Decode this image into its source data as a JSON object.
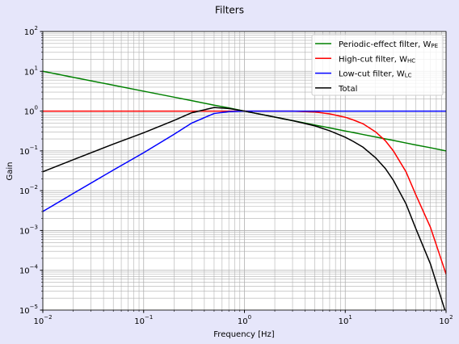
{
  "chart_data": {
    "type": "line",
    "title": "Filters",
    "x_label": "Frequency [Hz]",
    "y_label": "Gain",
    "xscale": "log",
    "yscale": "log",
    "grid": true,
    "legend": "upper right",
    "xlim": [
      0.01,
      100
    ],
    "ylim": [
      1e-05,
      100
    ],
    "xticks": [
      {
        "value": 0.01,
        "label": "10",
        "exponent": "−2"
      },
      {
        "value": 0.1,
        "label": "10",
        "exponent": "−1"
      },
      {
        "value": 1,
        "label": "10",
        "exponent": "0"
      },
      {
        "value": 10,
        "label": "10",
        "exponent": "1"
      },
      {
        "value": 100,
        "label": "10",
        "exponent": "2"
      }
    ],
    "yticks": [
      {
        "value": 1e-05,
        "label": "10",
        "exponent": "−5"
      },
      {
        "value": 0.0001,
        "label": "10",
        "exponent": "−4"
      },
      {
        "value": 0.001,
        "label": "10",
        "exponent": "−3"
      },
      {
        "value": 0.01,
        "label": "10",
        "exponent": "−2"
      },
      {
        "value": 0.1,
        "label": "10",
        "exponent": "−1"
      },
      {
        "value": 1,
        "label": "10",
        "exponent": "0"
      },
      {
        "value": 10,
        "label": "10",
        "exponent": "1"
      },
      {
        "value": 100,
        "label": "10",
        "exponent": "2"
      }
    ],
    "x": [
      0.01,
      0.02,
      0.05,
      0.1,
      0.2,
      0.3,
      0.5,
      0.7,
      1,
      2,
      3,
      5,
      7,
      10,
      12,
      15,
      20,
      25,
      30,
      40,
      50,
      70,
      100
    ],
    "series": [
      {
        "name": "Periodic-effect filter, W",
        "subscript": "PE",
        "color": "#008000",
        "values": [
          10,
          7.07,
          4.47,
          3.16,
          2.24,
          1.83,
          1.41,
          1.2,
          1,
          0.707,
          0.577,
          0.447,
          0.378,
          0.316,
          0.289,
          0.258,
          0.224,
          0.2,
          0.183,
          0.158,
          0.141,
          0.12,
          0.1
        ]
      },
      {
        "name": "High-cut filter, W",
        "subscript": "HC",
        "color": "#ff0000",
        "values": [
          1,
          1,
          1,
          1,
          1,
          1,
          1,
          1,
          1,
          1,
          1,
          0.95,
          0.85,
          0.7,
          0.6,
          0.48,
          0.3,
          0.18,
          0.1,
          0.03,
          0.008,
          0.0012,
          8e-05
        ]
      },
      {
        "name": "Low-cut filter, W",
        "subscript": "LC",
        "color": "#0000ff",
        "values": [
          0.003,
          0.0085,
          0.033,
          0.09,
          0.26,
          0.5,
          0.87,
          0.97,
          1,
          1,
          1,
          1,
          1,
          1,
          1,
          1,
          1,
          1,
          1,
          1,
          1,
          1,
          1
        ]
      },
      {
        "name": "Total",
        "color": "#000000",
        "values": [
          0.03,
          0.06,
          0.148,
          0.285,
          0.58,
          0.91,
          1.23,
          1.16,
          1,
          0.707,
          0.577,
          0.425,
          0.32,
          0.22,
          0.173,
          0.124,
          0.067,
          0.036,
          0.0183,
          0.0047,
          0.00113,
          0.000144,
          8e-06
        ]
      }
    ]
  }
}
